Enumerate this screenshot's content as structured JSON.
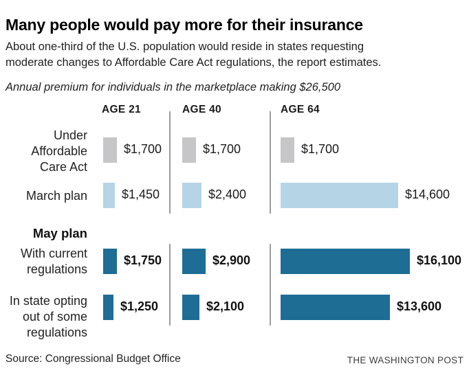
{
  "title": "Many people would pay more for their insurance",
  "subtitle_lines": [
    "About one-third of the U.S. population would reside in states requesting",
    "moderate changes to Affordable Care Act regulations, the report estimates."
  ],
  "note": "Annual premium for individuals in the marketplace making $26,500",
  "footer": {
    "source": "Source: Congressional Budget Office",
    "credit": "THE WASHINGTON POST"
  },
  "colors": {
    "under_aca_bar": "#c6c6c8",
    "march_plan_bar": "#b5d5e6",
    "may_plan_bar": "#1d6d94",
    "divider": "#9c9c9c"
  },
  "chart_data": {
    "type": "bar",
    "orientation": "horizontal",
    "unit": "USD, annual premium",
    "title": "Annual premium for individuals in the marketplace making $26,500",
    "columns": [
      "AGE 21",
      "AGE 40",
      "AGE 64"
    ],
    "section_label": "May plan",
    "rows": [
      {
        "label": "Under Affordable Care Act",
        "label_lines": [
          "Under",
          "Affordable",
          "Care Act"
        ],
        "section": null,
        "color_key": "under_aca_bar",
        "values": [
          1700,
          1700,
          1700
        ],
        "value_labels": [
          "$1,700",
          "$1,700",
          "$1,700"
        ],
        "bold_values": false
      },
      {
        "label": "March plan",
        "label_lines": [
          "March plan"
        ],
        "section": null,
        "color_key": "march_plan_bar",
        "values": [
          1450,
          2400,
          14600
        ],
        "value_labels": [
          "$1,450",
          "$2,400",
          "$14,600"
        ],
        "bold_values": false
      },
      {
        "label": "With current regulations",
        "label_lines": [
          "With current",
          "regulations"
        ],
        "section": "May plan",
        "color_key": "may_plan_bar",
        "values": [
          1750,
          2900,
          16100
        ],
        "value_labels": [
          "$1,750",
          "$2,900",
          "$16,100"
        ],
        "bold_values": true
      },
      {
        "label": "In state opting out of some regulations",
        "label_lines": [
          "In state opting",
          "out of some",
          "regulations"
        ],
        "section": "May plan",
        "color_key": "may_plan_bar",
        "values": [
          1250,
          2100,
          13600
        ],
        "value_labels": [
          "$1,250",
          "$2,100",
          "$13,600"
        ],
        "bold_values": true
      }
    ]
  }
}
